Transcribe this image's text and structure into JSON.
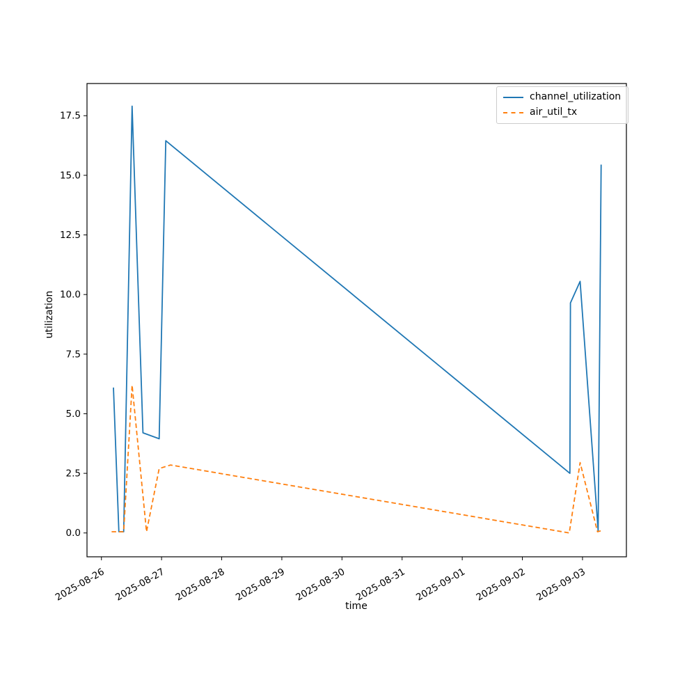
{
  "chart_data": {
    "type": "line",
    "title": "",
    "xlabel": "time",
    "ylabel": "utilization",
    "grid": false,
    "legend_position": "upper right",
    "x_unit": "days since 2025-08-26 00:00",
    "xlim": [
      -0.24,
      8.73
    ],
    "ylim": [
      -1.0,
      18.85
    ],
    "xticks": [
      0,
      1,
      2,
      3,
      4,
      5,
      6,
      7,
      8
    ],
    "xtick_labels": [
      "2025-08-26",
      "2025-08-27",
      "2025-08-28",
      "2025-08-29",
      "2025-08-30",
      "2025-08-31",
      "2025-09-01",
      "2025-09-02",
      "2025-09-03"
    ],
    "yticks": [
      0.0,
      2.5,
      5.0,
      7.5,
      10.0,
      12.5,
      15.0,
      17.5
    ],
    "ytick_labels": [
      "0.0",
      "2.5",
      "5.0",
      "7.5",
      "10.0",
      "12.5",
      "15.0",
      "17.5"
    ],
    "series": [
      {
        "name": "channel_utilization",
        "color": "#1f77b4",
        "style": "solid",
        "points": [
          [
            0.2,
            6.1
          ],
          [
            0.29,
            0.05
          ],
          [
            0.37,
            0.05
          ],
          [
            0.51,
            17.9
          ],
          [
            0.69,
            4.2
          ],
          [
            0.96,
            3.95
          ],
          [
            1.07,
            16.45
          ],
          [
            7.79,
            2.5
          ],
          [
            7.8,
            9.65
          ],
          [
            7.96,
            10.55
          ],
          [
            8.26,
            0.1
          ],
          [
            8.31,
            15.45
          ]
        ]
      },
      {
        "name": "air_util_tx",
        "color": "#ff7f0e",
        "style": "dashed",
        "points": [
          [
            0.17,
            0.05
          ],
          [
            0.37,
            0.05
          ],
          [
            0.51,
            6.2
          ],
          [
            0.75,
            0.05
          ],
          [
            0.96,
            2.7
          ],
          [
            1.15,
            2.85
          ],
          [
            7.78,
            0.0
          ],
          [
            7.96,
            2.95
          ],
          [
            8.25,
            0.05
          ],
          [
            8.32,
            0.1
          ]
        ]
      }
    ]
  }
}
